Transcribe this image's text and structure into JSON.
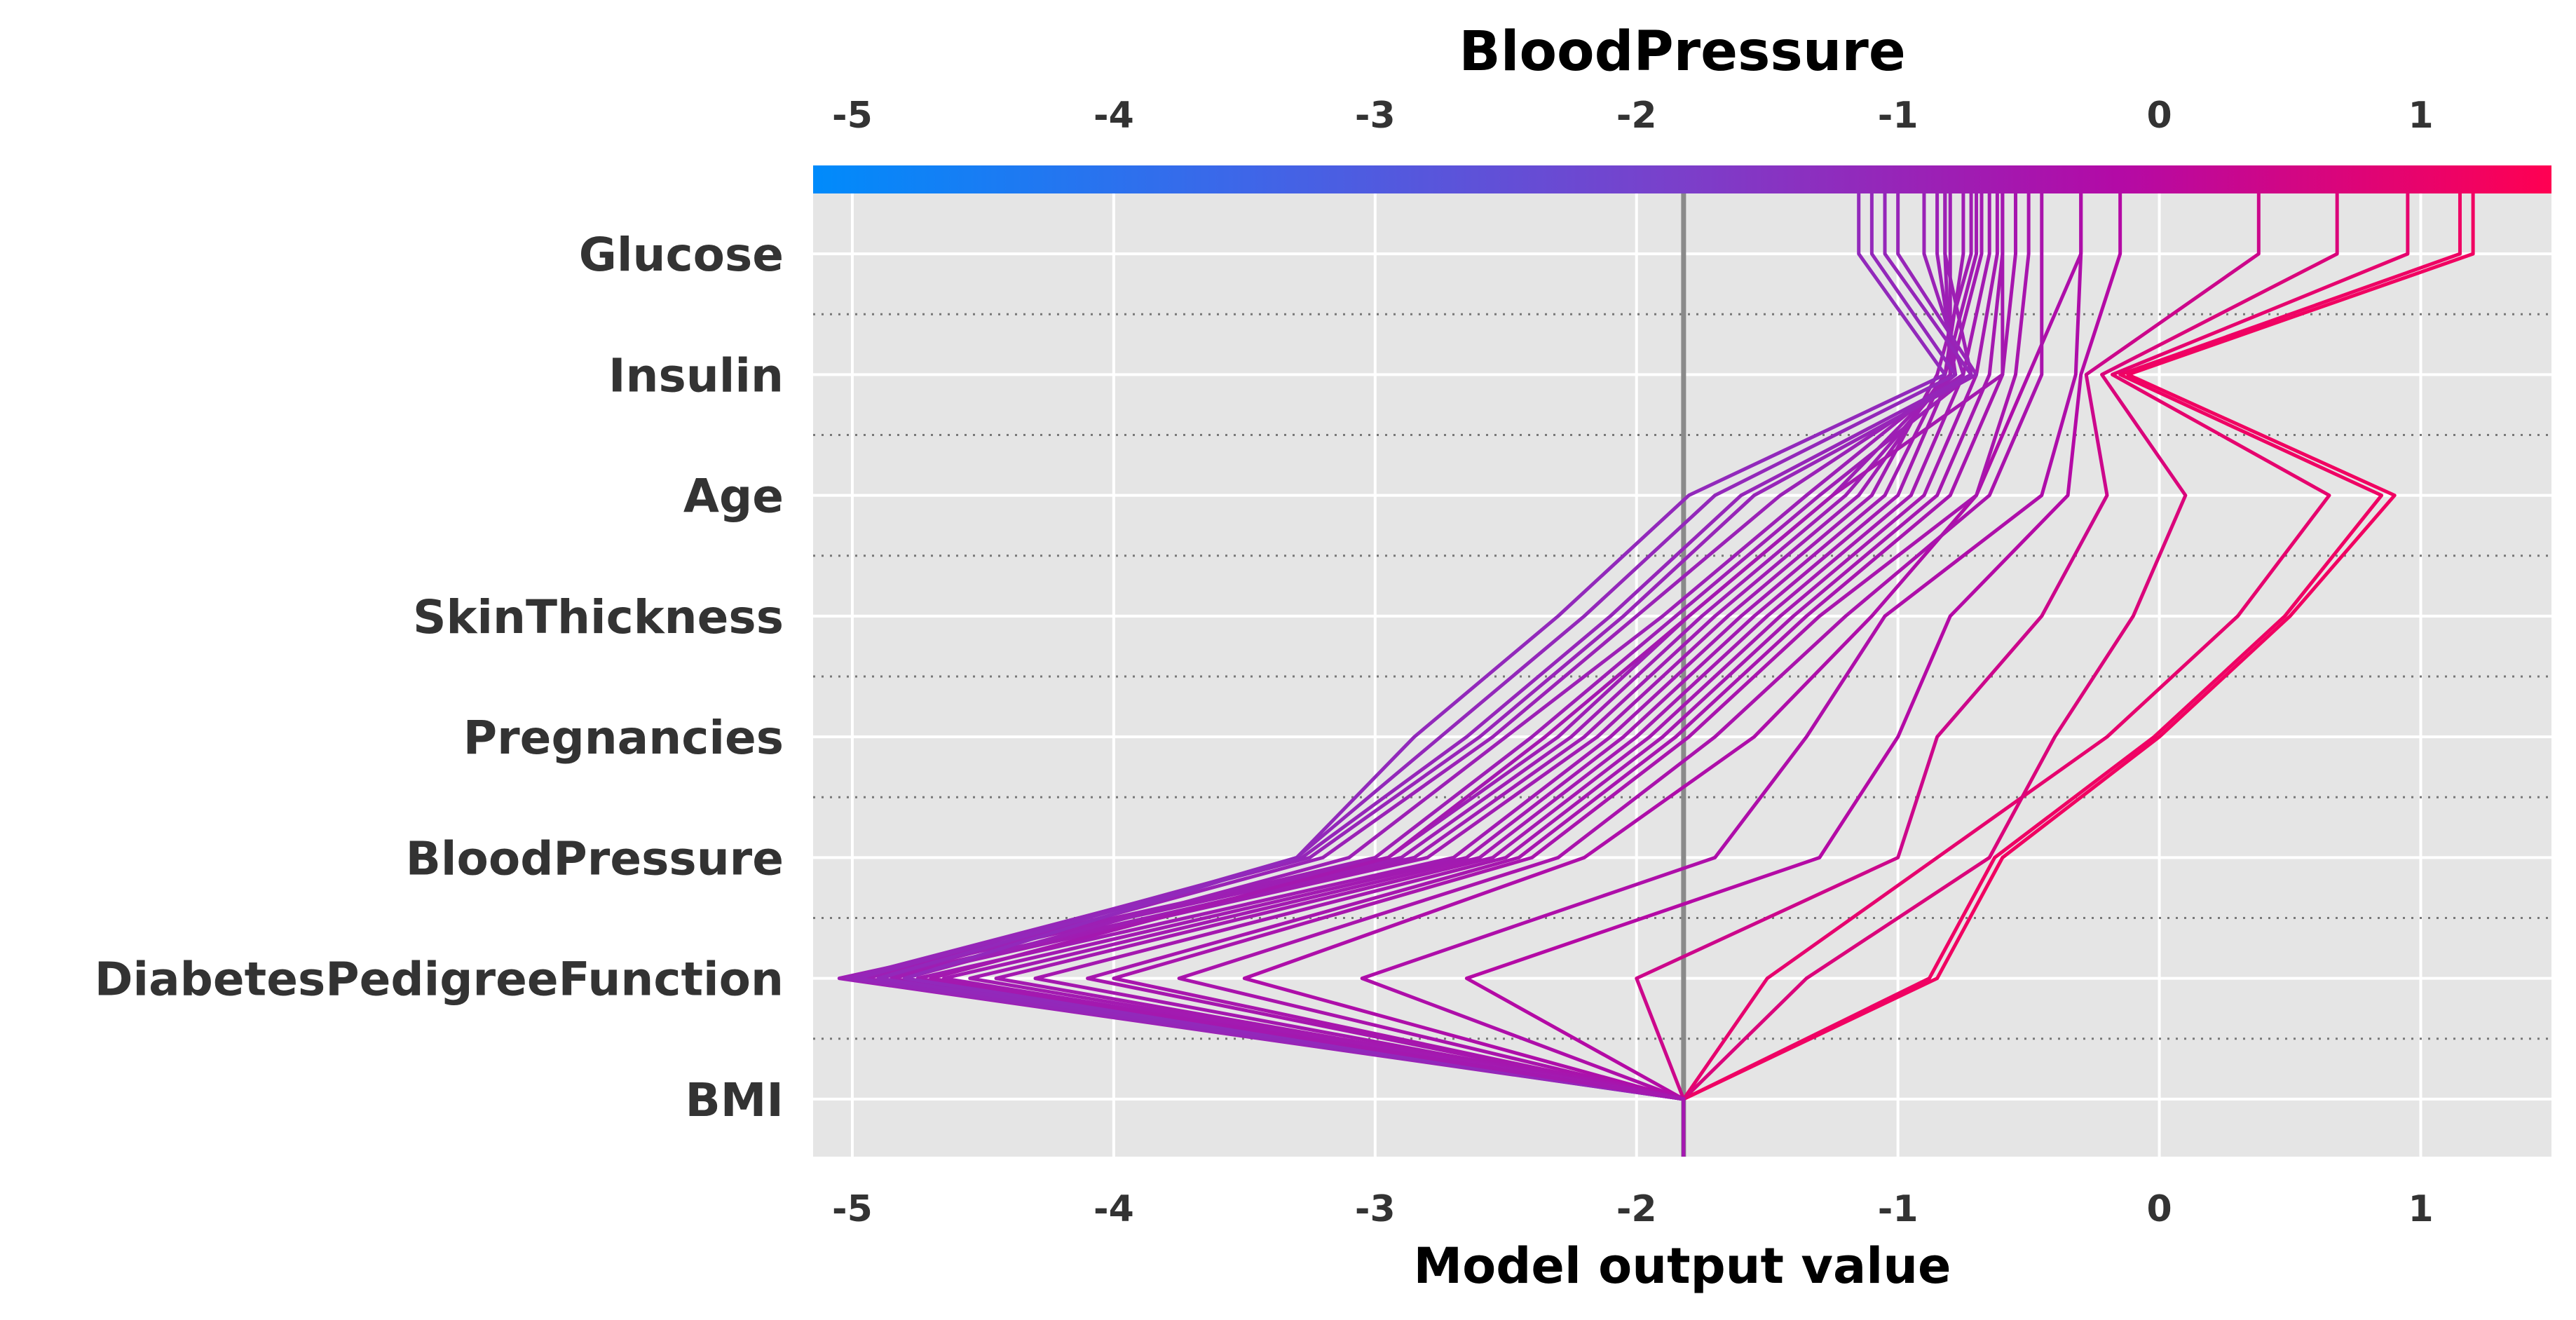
{
  "chart_data": {
    "type": "line",
    "title": "",
    "xlabel": "Model output value",
    "color_axis_label": "BloodPressure",
    "xlim": [
      -5.15,
      1.5
    ],
    "x_ticks": [
      -5,
      -4,
      -3,
      -2,
      -1,
      0,
      1
    ],
    "tick_labels": [
      "-5",
      "-4",
      "-3",
      "-2",
      "-1",
      "0",
      "1"
    ],
    "features": [
      "Glucose",
      "Insulin",
      "Age",
      "SkinThickness",
      "Pregnancies",
      "BloodPressure",
      "DiabetesPedigreeFunction",
      "BMI"
    ],
    "base_value": -1.82,
    "colormap": [
      "#008bfb",
      "#3e66e8",
      "#7b3fca",
      "#b30aa6",
      "#ff0052"
    ],
    "grid": true,
    "series": [
      {
        "values": [
          1.2,
          -0.12,
          0.9,
          0.5,
          0.0,
          -0.6,
          -0.85,
          -1.82
        ]
      },
      {
        "values": [
          1.15,
          -0.15,
          0.85,
          0.48,
          -0.02,
          -0.63,
          -0.88,
          -1.82
        ]
      },
      {
        "values": [
          0.95,
          -0.18,
          0.65,
          0.3,
          -0.2,
          -0.85,
          -1.5,
          -1.82
        ]
      },
      {
        "values": [
          0.68,
          -0.22,
          0.1,
          -0.1,
          -0.4,
          -0.65,
          -1.35,
          -1.82
        ]
      },
      {
        "values": [
          0.38,
          -0.28,
          -0.2,
          -0.45,
          -0.85,
          -1.0,
          -2.0,
          -1.82
        ]
      },
      {
        "values": [
          -0.15,
          -0.3,
          -0.35,
          -0.8,
          -1.0,
          -1.3,
          -2.65,
          -1.82
        ]
      },
      {
        "values": [
          -0.3,
          -0.32,
          -0.45,
          -1.05,
          -1.35,
          -1.7,
          -3.05,
          -1.82
        ]
      },
      {
        "values": [
          -0.3,
          -0.5,
          -0.7,
          -1.1,
          -1.55,
          -2.2,
          -3.5,
          -1.82
        ]
      },
      {
        "values": [
          -0.45,
          -0.45,
          -0.65,
          -1.2,
          -1.7,
          -2.3,
          -3.75,
          -1.82
        ]
      },
      {
        "values": [
          -0.5,
          -0.55,
          -0.7,
          -1.3,
          -1.8,
          -2.4,
          -4.0,
          -1.82
        ]
      },
      {
        "values": [
          -0.55,
          -0.6,
          -0.8,
          -1.35,
          -1.85,
          -2.45,
          -4.1,
          -1.82
        ]
      },
      {
        "values": [
          -0.6,
          -0.65,
          -0.85,
          -1.4,
          -1.9,
          -2.5,
          -4.3,
          -1.82
        ]
      },
      {
        "values": [
          -0.62,
          -0.7,
          -0.9,
          -1.45,
          -1.95,
          -2.55,
          -4.45,
          -1.82
        ]
      },
      {
        "values": [
          -0.65,
          -0.75,
          -0.95,
          -1.5,
          -2.0,
          -2.6,
          -4.55,
          -1.82
        ]
      },
      {
        "values": [
          -0.68,
          -0.8,
          -1.0,
          -1.55,
          -2.05,
          -2.65,
          -4.65,
          -1.82
        ]
      },
      {
        "values": [
          -0.7,
          -0.82,
          -1.05,
          -1.6,
          -2.1,
          -2.7,
          -4.75,
          -1.82
        ]
      },
      {
        "values": [
          -0.72,
          -0.85,
          -1.1,
          -1.65,
          -2.15,
          -2.8,
          -4.85,
          -1.82
        ]
      },
      {
        "values": [
          -0.75,
          -0.82,
          -1.15,
          -1.7,
          -2.2,
          -2.85,
          -4.9,
          -1.82
        ]
      },
      {
        "values": [
          -0.8,
          -0.8,
          -1.2,
          -1.75,
          -2.25,
          -2.9,
          -5.0,
          -1.82
        ]
      },
      {
        "values": [
          -0.82,
          -0.8,
          -1.25,
          -1.8,
          -2.3,
          -2.95,
          -5.05,
          -1.82
        ]
      },
      {
        "values": [
          -0.82,
          -0.72,
          -1.3,
          -1.85,
          -2.4,
          -3.0,
          -4.95,
          -1.82
        ]
      },
      {
        "values": [
          -0.85,
          -0.78,
          -1.35,
          -1.9,
          -2.5,
          -3.1,
          -4.8,
          -1.82
        ]
      },
      {
        "values": [
          -0.9,
          -0.75,
          -1.45,
          -2.0,
          -2.55,
          -3.2,
          -4.9,
          -1.82
        ]
      },
      {
        "values": [
          -1.0,
          -0.7,
          -1.55,
          -2.05,
          -2.6,
          -3.25,
          -5.02,
          -1.82
        ]
      },
      {
        "values": [
          -1.05,
          -0.72,
          -1.6,
          -2.1,
          -2.65,
          -3.28,
          -4.98,
          -1.82
        ]
      },
      {
        "values": [
          -1.1,
          -0.78,
          -1.7,
          -2.2,
          -2.75,
          -3.3,
          -4.9,
          -1.82
        ]
      },
      {
        "values": [
          -1.15,
          -0.82,
          -1.8,
          -2.3,
          -2.85,
          -3.3,
          -4.8,
          -1.82
        ]
      },
      {
        "values": [
          -0.6,
          -0.6,
          -1.25,
          -1.8,
          -2.35,
          -2.95,
          -4.7,
          -1.82
        ]
      }
    ]
  }
}
